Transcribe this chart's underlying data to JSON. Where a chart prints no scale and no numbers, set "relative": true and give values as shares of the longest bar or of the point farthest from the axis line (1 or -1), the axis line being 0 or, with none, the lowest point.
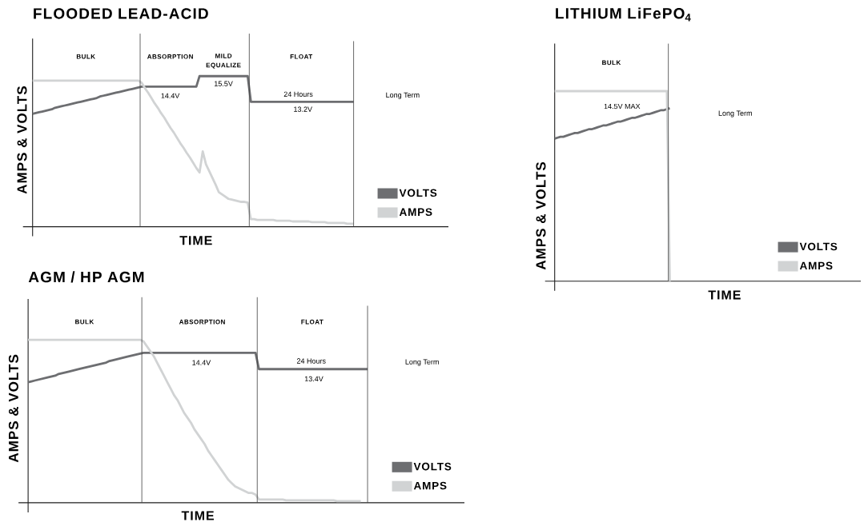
{
  "chart_data": [
    {
      "type": "line",
      "title": "FLOODED LEAD-ACID",
      "xlabel": "TIME",
      "ylabel": "AMPS & VOLTS",
      "relative": true,
      "legend": "bottom right",
      "categories": [
        null,
        null,
        null,
        null,
        null,
        null,
        null,
        null,
        null,
        null,
        null,
        null,
        null,
        null,
        null,
        null,
        null,
        null,
        null,
        null,
        null,
        null,
        null,
        null,
        null,
        null,
        null,
        null,
        null,
        null,
        null,
        null,
        null,
        null,
        null,
        null,
        null,
        null,
        null,
        null,
        null,
        null,
        null,
        null,
        null,
        null,
        null,
        null,
        null,
        null,
        null,
        null,
        null,
        null,
        null,
        null,
        null,
        null,
        null,
        null,
        null,
        null,
        null,
        null,
        null,
        null,
        null,
        null,
        null,
        null,
        null,
        null,
        null,
        null,
        null,
        null,
        null,
        null,
        null,
        null,
        null,
        null,
        null,
        null,
        null,
        null,
        null,
        null,
        null,
        null,
        null,
        null,
        null,
        null,
        null,
        null,
        null,
        null,
        null,
        null,
        null
      ],
      "series": [
        {
          "name": "VOLTS",
          "color": "#6d6e71",
          "values": [
            0.75,
            0.755,
            0.76,
            0.765,
            0.77,
            0.775,
            0.78,
            0.79,
            0.795,
            0.8,
            0.805,
            0.81,
            0.815,
            0.82,
            0.825,
            0.83,
            0.835,
            0.84,
            0.845,
            0.85,
            0.855,
            0.865,
            0.87,
            0.875,
            0.88,
            0.885,
            0.89,
            0.895,
            0.9,
            0.905,
            0.91,
            0.915,
            0.92,
            0.925,
            0.93,
            0.93,
            0.93,
            0.93,
            0.93,
            0.93,
            0.93,
            0.93,
            0.93,
            0.93,
            0.93,
            0.93,
            0.93,
            0.93,
            0.93,
            0.93,
            0.93,
            0.93,
            1,
            1,
            1,
            1,
            1,
            1,
            1,
            1,
            1,
            1,
            1,
            1,
            1,
            1,
            1,
            1,
            0.83,
            0.83,
            0.83,
            0.83,
            0.83,
            0.83,
            0.83,
            0.83,
            0.83,
            0.83,
            0.83,
            0.83,
            0.83,
            0.83,
            0.83,
            0.83,
            0.83,
            0.83,
            0.83,
            0.83,
            0.83,
            0.83,
            0.83,
            0.83,
            0.83,
            0.83,
            0.83,
            0.83,
            0.83,
            0.83,
            0.83,
            0.83,
            0.83
          ]
        },
        {
          "name": "AMPS",
          "color": "#d1d3d4",
          "values": [
            0.97,
            0.97,
            0.97,
            0.97,
            0.97,
            0.97,
            0.97,
            0.97,
            0.97,
            0.97,
            0.97,
            0.97,
            0.97,
            0.97,
            0.97,
            0.97,
            0.97,
            0.97,
            0.97,
            0.97,
            0.97,
            0.97,
            0.97,
            0.97,
            0.97,
            0.97,
            0.97,
            0.97,
            0.97,
            0.97,
            0.97,
            0.97,
            0.97,
            0.97,
            0.955,
            0.92,
            0.89,
            0.855,
            0.82,
            0.79,
            0.755,
            0.725,
            0.69,
            0.655,
            0.625,
            0.59,
            0.555,
            0.525,
            0.49,
            0.46,
            0.425,
            0.39,
            0.36,
            0.5,
            0.415,
            0.37,
            0.325,
            0.28,
            0.23,
            0.215,
            0.2,
            0.185,
            0.18,
            0.175,
            0.17,
            0.165,
            0.165,
            0.16,
            0.05,
            0.05,
            0.045,
            0.045,
            0.045,
            0.045,
            0.045,
            0.045,
            0.04,
            0.04,
            0.04,
            0.04,
            0.04,
            0.035,
            0.035,
            0.035,
            0.035,
            0.035,
            0.035,
            0.03,
            0.03,
            0.03,
            0.03,
            0.03,
            0.025,
            0.025,
            0.025,
            0.025,
            0.025,
            0.025,
            0.02,
            0.02,
            0.02
          ]
        }
      ],
      "annotations": [
        "BULK",
        "ABSORPTION",
        "MILD EQUALIZE",
        "FLOAT",
        "14.4V",
        "15.5V",
        "24 Hours",
        "13.2V",
        "Long Term"
      ]
    },
    {
      "type": "line",
      "title": "LITHIUM LiFePO$_{4}$",
      "xlabel": "TIME",
      "ylabel": "AMPS & VOLTS",
      "relative": true,
      "legend": "bottom right",
      "categories": [
        null,
        null,
        null,
        null,
        null,
        null,
        null,
        null,
        null,
        null,
        null,
        null,
        null,
        null,
        null,
        null,
        null,
        null,
        null,
        null,
        null,
        null,
        null,
        null,
        null,
        null,
        null,
        null,
        null,
        null,
        null,
        null,
        null,
        null,
        null,
        null,
        null,
        null,
        null,
        null,
        null
      ],
      "series": [
        {
          "name": "VOLTS",
          "color": "#6d6e71",
          "values": [
            0.75,
            0.755,
            0.76,
            0.76,
            0.765,
            0.77,
            0.775,
            0.78,
            0.78,
            0.785,
            0.79,
            0.795,
            0.8,
            0.8,
            0.805,
            0.81,
            0.815,
            0.82,
            0.82,
            0.825,
            0.83,
            0.835,
            0.84,
            0.84,
            0.845,
            0.85,
            0.855,
            0.86,
            0.86,
            0.865,
            0.87,
            0.875,
            0.88,
            0.88,
            0.885,
            0.89,
            0.895,
            0.9,
            0.9,
            0.905,
            0.91
          ]
        },
        {
          "name": "AMPS",
          "color": "#d1d3d4",
          "values": [
            1,
            1,
            1,
            1,
            1,
            1,
            1,
            1,
            1,
            1,
            1,
            1,
            1,
            1,
            1,
            1,
            1,
            1,
            1,
            1,
            1,
            1,
            1,
            1,
            1,
            1,
            1,
            1,
            1,
            1,
            1,
            1,
            1,
            1,
            1,
            1,
            1,
            1,
            1,
            1,
            0
          ]
        }
      ],
      "annotations": [
        "BULK",
        "14.5V MAX",
        "Long Term"
      ]
    },
    {
      "type": "line",
      "title": "AGM / HP AGM",
      "xlabel": "TIME",
      "ylabel": "AMPS & VOLTS",
      "relative": true,
      "legend": "bottom right",
      "categories": [
        null,
        null,
        null,
        null,
        null,
        null,
        null,
        null,
        null,
        null,
        null,
        null,
        null,
        null,
        null,
        null,
        null,
        null,
        null,
        null,
        null,
        null,
        null,
        null,
        null,
        null,
        null,
        null,
        null,
        null,
        null,
        null,
        null,
        null,
        null,
        null,
        null,
        null,
        null,
        null,
        null,
        null,
        null,
        null,
        null,
        null,
        null,
        null,
        null,
        null,
        null,
        null,
        null,
        null,
        null,
        null,
        null,
        null,
        null,
        null,
        null,
        null,
        null,
        null,
        null,
        null,
        null,
        null,
        null,
        null,
        null,
        null,
        null,
        null,
        null,
        null,
        null,
        null,
        null,
        null,
        null,
        null,
        null,
        null,
        null,
        null,
        null,
        null,
        null,
        null,
        null,
        null,
        null,
        null,
        null,
        null,
        null,
        null,
        null,
        null,
        null
      ],
      "series": [
        {
          "name": "VOLTS",
          "color": "#6d6e71",
          "values": [
            0.74,
            0.745,
            0.75,
            0.755,
            0.76,
            0.765,
            0.77,
            0.775,
            0.78,
            0.79,
            0.795,
            0.8,
            0.805,
            0.81,
            0.815,
            0.82,
            0.825,
            0.83,
            0.835,
            0.84,
            0.845,
            0.85,
            0.855,
            0.86,
            0.87,
            0.875,
            0.88,
            0.885,
            0.89,
            0.895,
            0.9,
            0.905,
            0.91,
            0.915,
            0.92,
            0.92,
            0.92,
            0.92,
            0.92,
            0.92,
            0.92,
            0.92,
            0.92,
            0.92,
            0.92,
            0.92,
            0.92,
            0.92,
            0.92,
            0.92,
            0.92,
            0.92,
            0.92,
            0.92,
            0.92,
            0.92,
            0.92,
            0.92,
            0.92,
            0.92,
            0.92,
            0.92,
            0.92,
            0.92,
            0.92,
            0.92,
            0.92,
            0.92,
            0.82,
            0.82,
            0.82,
            0.82,
            0.82,
            0.82,
            0.82,
            0.82,
            0.82,
            0.82,
            0.82,
            0.82,
            0.82,
            0.82,
            0.82,
            0.82,
            0.82,
            0.82,
            0.82,
            0.82,
            0.82,
            0.82,
            0.82,
            0.82,
            0.82,
            0.82,
            0.82,
            0.82,
            0.82,
            0.82,
            0.82,
            0.82,
            0.82
          ]
        },
        {
          "name": "AMPS",
          "color": "#d1d3d4",
          "values": [
            1,
            1,
            1,
            1,
            1,
            1,
            1,
            1,
            1,
            1,
            1,
            1,
            1,
            1,
            1,
            1,
            1,
            1,
            1,
            1,
            1,
            1,
            1,
            1,
            1,
            1,
            1,
            1,
            1,
            1,
            1,
            1,
            1,
            1,
            0.99,
            0.96,
            0.93,
            0.9,
            0.86,
            0.82,
            0.78,
            0.74,
            0.7,
            0.66,
            0.63,
            0.59,
            0.55,
            0.52,
            0.49,
            0.45,
            0.42,
            0.39,
            0.36,
            0.32,
            0.29,
            0.26,
            0.23,
            0.2,
            0.17,
            0.14,
            0.12,
            0.1,
            0.09,
            0.08,
            0.07,
            0.06,
            0.06,
            0.05,
            0.02,
            0.02,
            0.02,
            0.02,
            0.02,
            0.02,
            0.02,
            0.02,
            0.015,
            0.015,
            0.015,
            0.015,
            0.015,
            0.015,
            0.015,
            0.015,
            0.015,
            0.015,
            0.015,
            0.015,
            0.015,
            0.015,
            0.015,
            0.01,
            0.01,
            0.01,
            0.01,
            0.01,
            0.01,
            0.01,
            0.01,
            null,
            null
          ]
        }
      ],
      "annotations": [
        "BULK",
        "ABSORPTION",
        "FLOAT",
        "14.4V",
        "24 Hours",
        "13.4V",
        "Long Term"
      ]
    }
  ]
}
